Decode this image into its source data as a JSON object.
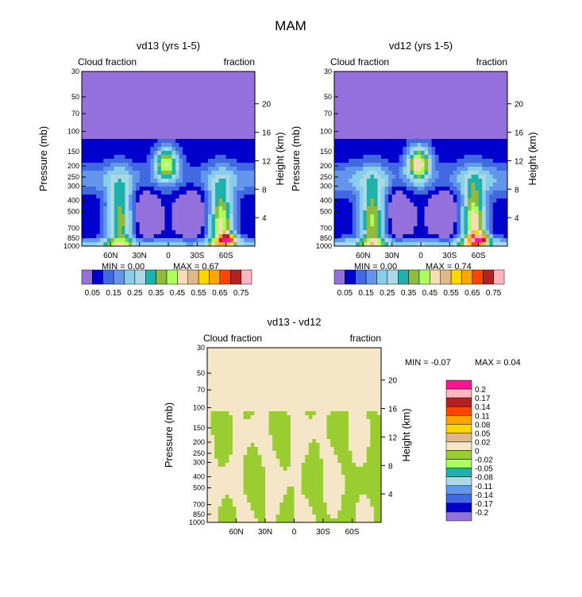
{
  "figure_title": "MAM",
  "pressure_levels": [
    1000,
    850,
    700,
    500,
    400,
    300,
    250,
    200,
    150,
    100,
    70,
    50,
    30
  ],
  "height_ticks": [
    4,
    8,
    12,
    16,
    20
  ],
  "lat_ticks": [
    "60N",
    "30N",
    "0",
    "30S",
    "60S"
  ],
  "lat_values": [
    60,
    30,
    0,
    -30,
    -60
  ],
  "colors": {
    "cloud_palette": [
      "#9370DB",
      "#0000CD",
      "#4169E1",
      "#6495ED",
      "#87CEEB",
      "#ADD8E6",
      "#20B2AA",
      "#8FBC3F",
      "#ADFF5F",
      "#F5DEB3",
      "#DEB887",
      "#FFD700",
      "#FFA500",
      "#FF4500",
      "#B22222",
      "#FFB6C1",
      "#FF1493"
    ],
    "diff_palette": [
      "#9370DB",
      "#0000CD",
      "#4169E1",
      "#6495ED",
      "#ADD8E6",
      "#20B2AA",
      "#ADFF5F",
      "#9ACD32",
      "#F5E6C8",
      "#DEB887",
      "#FFD700",
      "#FFA500",
      "#FF4500",
      "#B22222",
      "#FFB6C1",
      "#FF1493"
    ]
  },
  "chart_data": [
    {
      "type": "heatmap",
      "title": "vd13 (yrs 1-5)",
      "left_label": "Cloud fraction",
      "right_label": "fraction",
      "ylabel": "Pressure (mb)",
      "y2label": "Height (km)",
      "xlim": [
        90,
        -90
      ],
      "ylim": [
        1000,
        30
      ],
      "y_scale": "log",
      "min_text": "MIN =    0.00",
      "max_text": "MAX =    0.67",
      "min": 0.0,
      "max": 0.67,
      "colorbar_ticks": [
        "0.05",
        "0.15",
        "0.25",
        "0.35",
        "0.45",
        "0.55",
        "0.65",
        "0.75"
      ]
    },
    {
      "type": "heatmap",
      "title": "vd12 (yrs 1-5)",
      "left_label": "Cloud fraction",
      "right_label": "fraction",
      "ylabel": "Pressure (mb)",
      "y2label": "Height (km)",
      "xlim": [
        90,
        -90
      ],
      "ylim": [
        1000,
        30
      ],
      "y_scale": "log",
      "min_text": "MIN =    0.00",
      "max_text": "MAX =    0.74",
      "min": 0.0,
      "max": 0.74,
      "colorbar_ticks": [
        "0.05",
        "0.15",
        "0.25",
        "0.35",
        "0.45",
        "0.55",
        "0.65",
        "0.75"
      ]
    },
    {
      "type": "heatmap",
      "title": "vd13 - vd12",
      "left_label": "Cloud fraction",
      "right_label": "fraction",
      "ylabel": "Pressure (mb)",
      "y2label": "Height (km)",
      "xlim": [
        90,
        -90
      ],
      "ylim": [
        1000,
        30
      ],
      "y_scale": "log",
      "min_text": "MIN =    -0.07",
      "max_text": "MAX =      0.04",
      "min": -0.07,
      "max": 0.04,
      "colorbar_ticks": [
        "0.2",
        "0.17",
        "0.14",
        "0.11",
        "0.08",
        "0.05",
        "0.02",
        "0",
        "-0.02",
        "-0.05",
        "-0.08",
        "-0.11",
        "-0.14",
        "-0.17",
        "-0.2"
      ]
    }
  ]
}
